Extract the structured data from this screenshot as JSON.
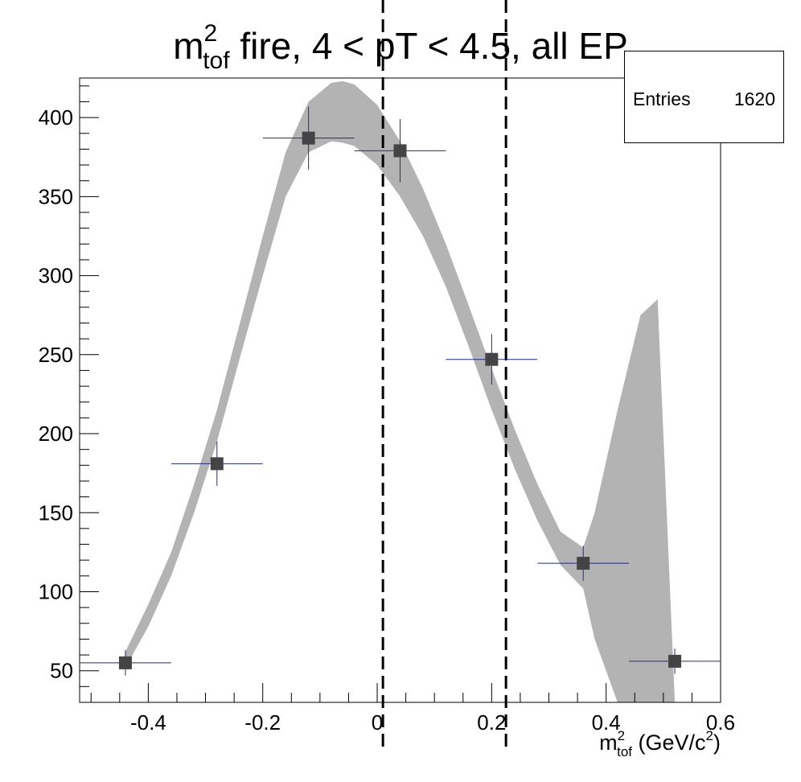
{
  "title": {
    "main": "m",
    "sup": "2",
    "sub": "tof",
    "rest": " fire, 4 < pT < 4.5, all EP"
  },
  "stats": {
    "label": "Entries",
    "value": "1620"
  },
  "xlabel": {
    "base": "m",
    "sup": "2",
    "sub": "tof",
    "unit_open": " (GeV/c",
    "unit_sup": "2",
    "unit_close": ")"
  },
  "colors": {
    "band": "#b3b3b3",
    "marker": "#444444",
    "errorbar": "#1f2a8c",
    "axis": "#000000"
  },
  "chart_data": {
    "type": "scatter",
    "xlim": [
      -0.52,
      0.6
    ],
    "ylim": [
      30,
      425
    ],
    "x_ticks": [
      -0.4,
      -0.2,
      0,
      0.2,
      0.4,
      0.6
    ],
    "x_tick_labels": [
      "-0.4",
      "-0.2",
      "0",
      "0.2",
      "0.4",
      "0.6"
    ],
    "y_ticks": [
      50,
      100,
      150,
      200,
      250,
      300,
      350,
      400
    ],
    "y_tick_labels": [
      "50",
      "100",
      "150",
      "200",
      "250",
      "300",
      "350",
      "400"
    ],
    "points": {
      "x": [
        -0.44,
        -0.28,
        -0.12,
        0.04,
        0.2,
        0.36,
        0.52
      ],
      "y": [
        55,
        181,
        387,
        379,
        247,
        118,
        56
      ],
      "xerr": [
        0.08,
        0.08,
        0.08,
        0.08,
        0.08,
        0.08,
        0.08
      ],
      "yerr": [
        8,
        14,
        20,
        20,
        16,
        11,
        8
      ]
    },
    "fit_band": {
      "x": [
        -0.44,
        -0.4,
        -0.36,
        -0.32,
        -0.28,
        -0.24,
        -0.2,
        -0.16,
        -0.12,
        -0.08,
        -0.06,
        -0.04,
        0.0,
        0.04,
        0.08,
        0.12,
        0.16,
        0.2,
        0.24,
        0.28,
        0.32,
        0.36,
        0.38,
        0.42,
        0.46,
        0.49,
        0.52
      ],
      "upper": [
        62,
        92,
        125,
        168,
        215,
        270,
        325,
        378,
        410,
        422,
        423,
        421,
        408,
        385,
        355,
        320,
        281,
        241,
        203,
        168,
        138,
        128,
        150,
        215,
        275,
        285,
        30
      ],
      "lower": [
        52,
        78,
        110,
        150,
        195,
        248,
        300,
        350,
        378,
        385,
        384,
        382,
        370,
        350,
        325,
        293,
        255,
        215,
        178,
        145,
        117,
        102,
        70,
        30,
        30,
        30,
        30
      ]
    },
    "vlines": [
      0.01,
      0.225
    ]
  }
}
